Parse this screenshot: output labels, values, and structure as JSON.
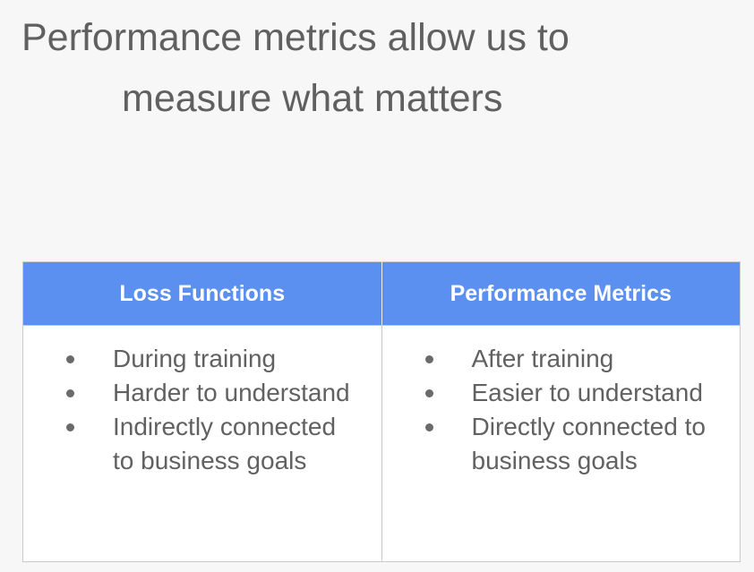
{
  "title": {
    "line1": "Performance metrics allow us to",
    "line2": "measure what matters"
  },
  "table": {
    "columns": [
      {
        "header": "Loss Functions",
        "items": [
          "During training",
          "Harder to understand",
          "Indirectly connected to business goals"
        ]
      },
      {
        "header": "Performance Metrics",
        "items": [
          "After training",
          "Easier to understand",
          "Directly connected to business goals"
        ]
      }
    ]
  },
  "colors": {
    "header_background": "#5b8ff0",
    "page_background": "#f7f7f7"
  }
}
